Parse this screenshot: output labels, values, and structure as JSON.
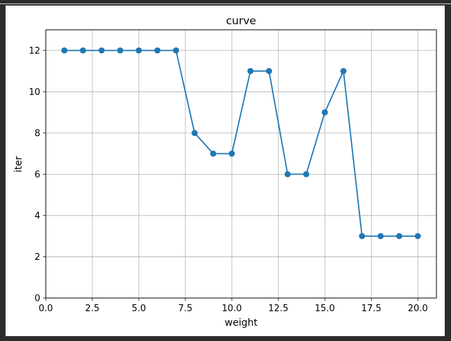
{
  "chart_data": {
    "type": "line",
    "title": "curve",
    "xlabel": "weight",
    "ylabel": "iter",
    "xlim": [
      0,
      21
    ],
    "ylim": [
      0,
      13
    ],
    "x_ticks": [
      0.0,
      2.5,
      5.0,
      7.5,
      10.0,
      12.5,
      15.0,
      17.5,
      20.0
    ],
    "x_tick_labels": [
      "0.0",
      "2.5",
      "5.0",
      "7.5",
      "10.0",
      "12.5",
      "15.0",
      "17.5",
      "20.0"
    ],
    "y_ticks": [
      0,
      2,
      4,
      6,
      8,
      10,
      12
    ],
    "y_tick_labels": [
      "0",
      "2",
      "4",
      "6",
      "8",
      "10",
      "12"
    ],
    "grid": true,
    "markers": true,
    "series": [
      {
        "color": "#1f77b4",
        "x": [
          1,
          2,
          3,
          4,
          5,
          6,
          7,
          8,
          9,
          10,
          11,
          12,
          13,
          14,
          15,
          16,
          17,
          18,
          19,
          20
        ],
        "y": [
          12,
          12,
          12,
          12,
          12,
          12,
          12,
          8,
          7,
          7,
          11,
          11,
          6,
          6,
          9,
          11,
          3,
          3,
          3,
          3
        ]
      }
    ]
  },
  "colors": {
    "line": "#1f77b4",
    "grid": "#b0b0b0",
    "frame_background": "#2b2b2b",
    "canvas_background": "#ffffff"
  }
}
